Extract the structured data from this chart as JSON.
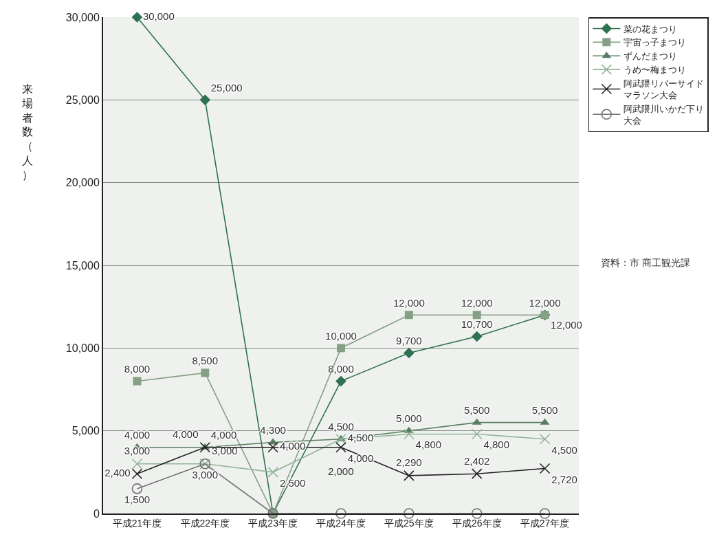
{
  "chart_data": {
    "type": "line",
    "ylabel": "来場者数（人）",
    "categories": [
      "平成21年度",
      "平成22年度",
      "平成23年度",
      "平成24年度",
      "平成25年度",
      "平成26年度",
      "平成27年度"
    ],
    "series": [
      {
        "name": "菜の花まつり",
        "color": "#2e7150",
        "marker": "diamond",
        "values": [
          30000,
          25000,
          0,
          8000,
          9700,
          10700,
          12000
        ],
        "value_labels": [
          "30,000",
          "25,000",
          null,
          "8,000",
          "9,700",
          "10,700",
          "12,000"
        ]
      },
      {
        "name": "宇宙っ子まつり",
        "color": "#86a086",
        "marker": "square",
        "values": [
          8000,
          8500,
          0,
          10000,
          12000,
          12000,
          12000
        ],
        "value_labels": [
          "8,000",
          "8,500",
          null,
          "10,000",
          "12,000",
          "12,000",
          "12,000"
        ]
      },
      {
        "name": "ずんだまつり",
        "color": "#5a7d62",
        "marker": "triangle",
        "values": [
          4000,
          4000,
          4300,
          4500,
          5000,
          5500,
          5500
        ],
        "value_labels": [
          "4,000",
          "4,000",
          "4,300",
          "4,500",
          "5,000",
          "5,500",
          "5,500"
        ]
      },
      {
        "name": "うめ〜梅まつり",
        "color": "#94b49a",
        "marker": "cross",
        "values": [
          3000,
          3000,
          2500,
          4500,
          4800,
          4800,
          4500
        ],
        "value_labels": [
          "3,000",
          "3,000",
          "2,500",
          "4,500",
          "4,800",
          "4,800",
          "4,500"
        ]
      },
      {
        "name": "阿武隈リバーサイドマラソン大会",
        "color": "#222222",
        "marker": "cross",
        "values": [
          2400,
          4000,
          4000,
          4000,
          2290,
          2402,
          2720
        ],
        "value_labels": [
          "2,400",
          "4,000",
          "4,000",
          "4,000",
          "2,290",
          "2,402",
          "2,720"
        ]
      },
      {
        "name": "阿武隈川いかだ下り大会",
        "color": "#707070",
        "marker": "circle",
        "values": [
          1500,
          3000,
          0,
          0,
          0,
          0,
          0
        ],
        "value_labels": [
          "1,500",
          "3,000",
          null,
          null,
          null,
          null,
          null
        ]
      }
    ],
    "ylim": [
      0,
      30000
    ],
    "yticks": [
      {
        "value": 0,
        "label": "0"
      },
      {
        "value": 5000,
        "label": "5,000"
      },
      {
        "value": 10000,
        "label": "10,000"
      },
      {
        "value": 15000,
        "label": "15,000"
      },
      {
        "value": 20000,
        "label": "20,000"
      },
      {
        "value": 25000,
        "label": "25,000"
      },
      {
        "value": 30000,
        "label": "30,000"
      }
    ],
    "grid": "y",
    "legend": "top right",
    "line_style": "solid",
    "annotations": [
      "資料：市 商工観光課",
      "2,000"
    ]
  }
}
